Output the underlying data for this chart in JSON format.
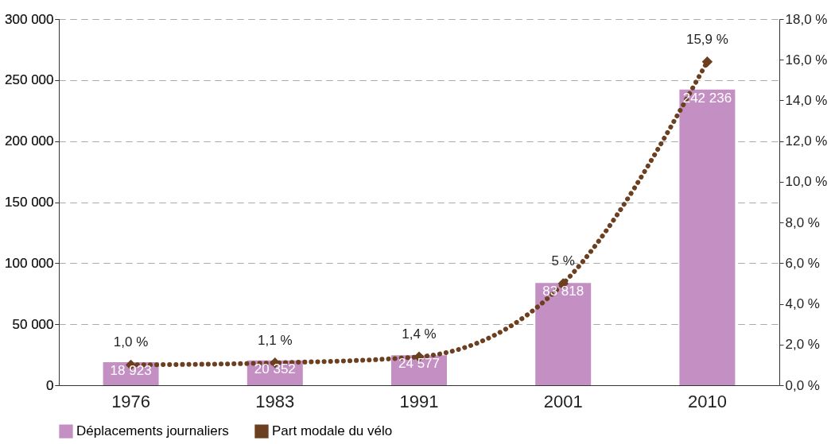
{
  "chart_data": {
    "type": "bar",
    "categories": [
      "1976",
      "1983",
      "1991",
      "2001",
      "2010"
    ],
    "series": [
      {
        "name": "Déplacements journaliers",
        "color": "#c490c4",
        "values": [
          18923,
          20352,
          24577,
          83818,
          242236
        ],
        "value_labels": [
          "18 923",
          "20 352",
          "24 577",
          "83 818",
          "242 236"
        ]
      },
      {
        "name": "Part modale du vélo",
        "type": "line",
        "axis": "y2",
        "color": "#6b3f1f",
        "marker": "diamond",
        "line_style": "dotted",
        "values": [
          1.0,
          1.1,
          1.4,
          5,
          15.9
        ],
        "value_labels": [
          "1,0 %",
          "1,1 %",
          "1,4 %",
          "5 %",
          "15,9 %"
        ]
      }
    ],
    "ylim": [
      0,
      300000
    ],
    "yticks": [
      {
        "value": 0,
        "label": "0"
      },
      {
        "value": 50000,
        "label": "50 000"
      },
      {
        "value": 100000,
        "label": "100 000"
      },
      {
        "value": 150000,
        "label": "150 000"
      },
      {
        "value": 200000,
        "label": "200 000"
      },
      {
        "value": 250000,
        "label": "250 000"
      },
      {
        "value": 300000,
        "label": "300 000"
      }
    ],
    "y2lim": [
      0,
      18
    ],
    "y2ticks": [
      {
        "value": 0,
        "label": "0,0 %"
      },
      {
        "value": 2,
        "label": "2,0 %"
      },
      {
        "value": 4,
        "label": "4,0 %"
      },
      {
        "value": 6,
        "label": "6,0 %"
      },
      {
        "value": 8,
        "label": "8,0 %"
      },
      {
        "value": 10,
        "label": "10,0 %"
      },
      {
        "value": 12,
        "label": "12,0 %"
      },
      {
        "value": 14,
        "label": "14,0 %"
      },
      {
        "value": 16,
        "label": "16,0 %"
      },
      {
        "value": 18,
        "label": "18,0 %"
      }
    ],
    "grid": "y",
    "legend": "bottom"
  }
}
